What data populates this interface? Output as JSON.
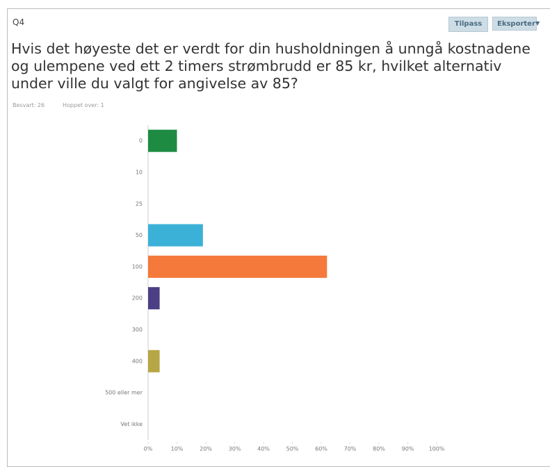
{
  "header": {
    "question_id": "Q4",
    "buttons": [
      "Tilpass",
      "Eksporter"
    ],
    "question": "Hvis det høyeste det er verdt for din husholdningen å unngå kostnadene og ulempene ved ett 2 timers strømbrudd er 85 kr, hvilket alternativ under ville du valgt for angivelse av 85?",
    "answered": "Besvart: 26",
    "skipped": "Hoppet over: 1"
  },
  "chart_data": {
    "type": "hbar",
    "categories": [
      "0",
      "10",
      "25",
      "50",
      "100",
      "200",
      "300",
      "400",
      "500 eller mer",
      "Vet ikke"
    ],
    "values": [
      10,
      0,
      0,
      19,
      62,
      4,
      0,
      4,
      0,
      0
    ],
    "colors": [
      "#1e8b43",
      "#1e8b43",
      "#1e8b43",
      "#3cb1d8",
      "#f5793a",
      "#4c3f85",
      "#4c3f85",
      "#b6a646",
      "#b6a646",
      "#b6a646"
    ],
    "xlim": [
      0,
      100
    ],
    "xticks": [
      {
        "value": 0,
        "label": "0%"
      },
      {
        "value": 10,
        "label": "10%"
      },
      {
        "value": 20,
        "label": "20%"
      },
      {
        "value": 30,
        "label": "30%"
      },
      {
        "value": 40,
        "label": "40%"
      },
      {
        "value": 50,
        "label": "50%"
      },
      {
        "value": 60,
        "label": "60%"
      },
      {
        "value": 70,
        "label": "70%"
      },
      {
        "value": 80,
        "label": "80%"
      },
      {
        "value": 90,
        "label": "90%"
      },
      {
        "value": 100,
        "label": "100%"
      }
    ]
  }
}
